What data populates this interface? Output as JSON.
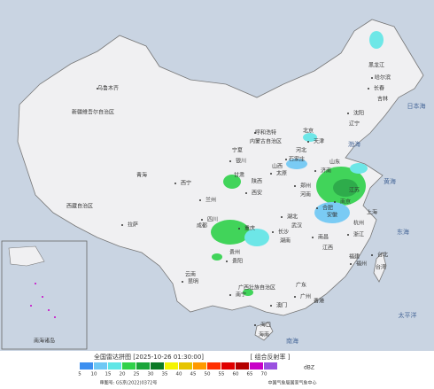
{
  "title": "全国雷达拼图 [2025-10-26 01:30:00]",
  "product": "[ 组合反射率 ]",
  "unit": "dBZ",
  "legend": {
    "values": [
      5,
      10,
      15,
      20,
      25,
      30,
      35,
      40,
      45,
      50,
      55,
      60,
      65,
      70
    ],
    "colors": [
      "#3c8ff0",
      "#6ec8f5",
      "#5fe6e6",
      "#2fd24a",
      "#1aa53a",
      "#0c7a26",
      "#f4f400",
      "#e6c400",
      "#ff9a00",
      "#ff3000",
      "#e00000",
      "#b40000",
      "#c800c8",
      "#9a50e0"
    ]
  },
  "footer": {
    "approval": "审图号: GS京(2022)0372号",
    "agency": "中国气象局国家气象中心"
  },
  "labels": [
    "新疆维吾尔自治区",
    "乌鲁木齐",
    "西藏自治区",
    "拉萨",
    "青海",
    "西宁",
    "甘肃",
    "兰州",
    "宁夏",
    "银川",
    "内蒙古自治区",
    "呼和浩特",
    "黑龙江",
    "哈尔滨",
    "吉林",
    "长春",
    "辽宁",
    "沈阳",
    "北京",
    "天津",
    "河北",
    "石家庄",
    "山西",
    "太原",
    "陕西",
    "西安",
    "河南",
    "郑州",
    "山东",
    "济南",
    "江苏",
    "南京",
    "安徽",
    "合肥",
    "上海",
    "浙江",
    "杭州",
    "湖北",
    "武汉",
    "四川",
    "成都",
    "重庆",
    "贵州",
    "贵阳",
    "云南",
    "昆明",
    "湖南",
    "长沙",
    "江西",
    "南昌",
    "福建",
    "福州",
    "台湾",
    "台北",
    "广西壮族自治区",
    "南宁",
    "广东",
    "广州",
    "香港",
    "澳门",
    "海南",
    "海口",
    "渤海",
    "黄海",
    "东海",
    "南海",
    "太平洋",
    "日本海",
    "南海诸岛"
  ]
}
